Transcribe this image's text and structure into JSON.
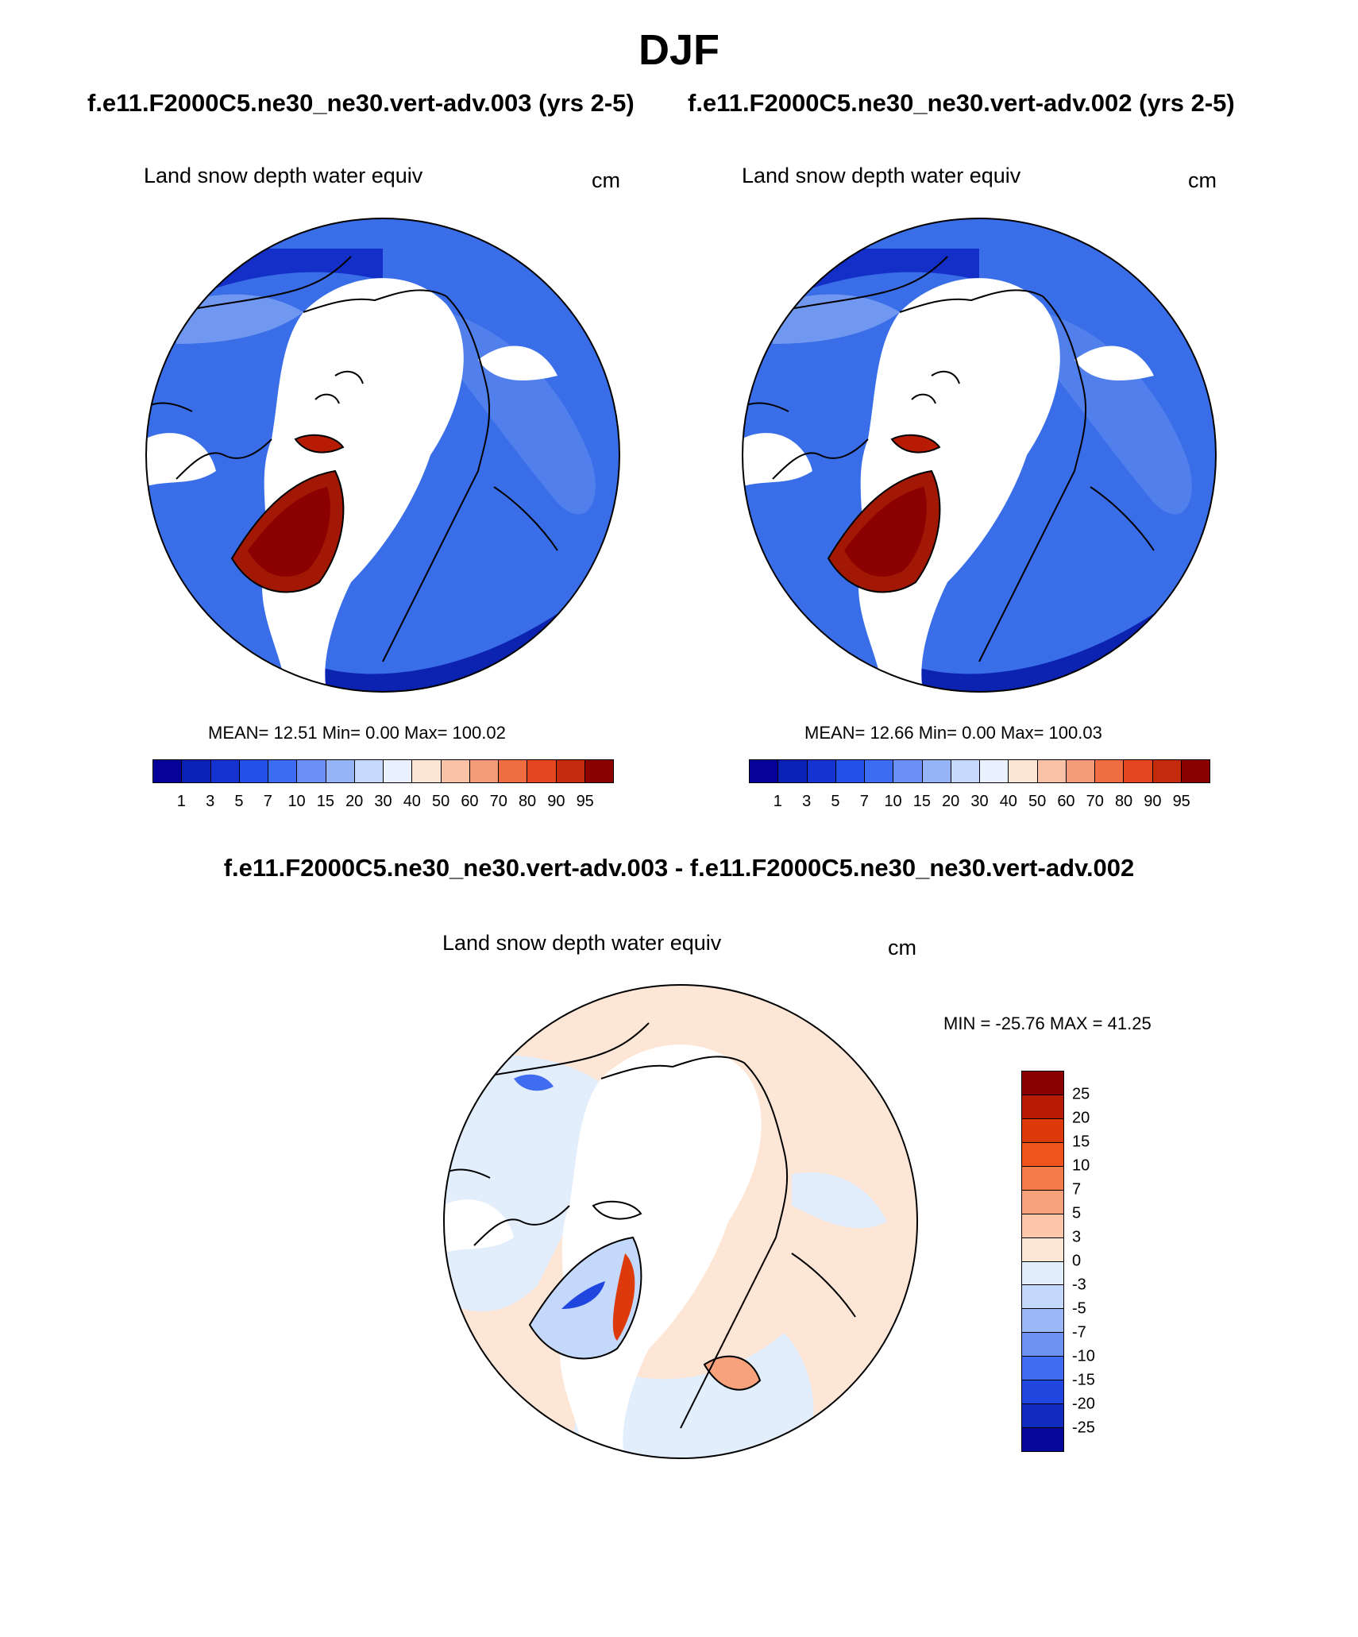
{
  "figure": {
    "season": "DJF",
    "case_a_title": "f.e11.F2000C5.ne30_ne30.vert-adv.003 (yrs 2-5)",
    "case_b_title": "f.e11.F2000C5.ne30_ne30.vert-adv.002 (yrs 2-5)",
    "diff_title": "f.e11.F2000C5.ne30_ne30.vert-adv.003 - f.e11.F2000C5.ne30_ne30.vert-adv.002"
  },
  "panels": [
    {
      "variable": "Land snow depth water equiv",
      "units": "cm",
      "stats": "MEAN=  12.51  Min=   0.00  Max= 100.02",
      "projection": "north-polar-stereographic",
      "field": "model-a"
    },
    {
      "variable": "Land snow depth water equiv",
      "units": "cm",
      "stats": "MEAN=  12.66  Min=   0.00  Max= 100.03",
      "projection": "north-polar-stereographic",
      "field": "model-b"
    },
    {
      "variable": "Land snow depth water equiv",
      "units": "cm",
      "stats": "MIN = -25.76 MAX =  41.25",
      "projection": "north-polar-stereographic",
      "field": "difference"
    }
  ],
  "colorbar_main": {
    "orientation": "horizontal",
    "levels": [
      "1",
      "3",
      "5",
      "7",
      "10",
      "15",
      "20",
      "30",
      "40",
      "50",
      "60",
      "70",
      "80",
      "90",
      "95"
    ],
    "colors": [
      "#08009b",
      "#0a21b5",
      "#1433d0",
      "#2250e8",
      "#3c6cf2",
      "#6a90f5",
      "#94b4f7",
      "#c4d9fb",
      "#e8f1fd",
      "#fde5d6",
      "#f9c2a6",
      "#f59b78",
      "#f06d42",
      "#e6461f",
      "#c42a0c",
      "#8b0000"
    ]
  },
  "colorbar_diff": {
    "orientation": "vertical",
    "levels": [
      "25",
      "20",
      "15",
      "10",
      "7",
      "5",
      "3",
      "0",
      "-3",
      "-5",
      "-7",
      "-10",
      "-15",
      "-20",
      "-25"
    ],
    "colors": [
      "#8b0000",
      "#b81b04",
      "#dd3a0c",
      "#f0531c",
      "#f47c4b",
      "#f8a27c",
      "#fbc6aa",
      "#fde6d6",
      "#e3eefc",
      "#c4d8fb",
      "#9ab8f7",
      "#6c92f4",
      "#3f6cf0",
      "#1f47e0",
      "#102bbd",
      "#07089a"
    ]
  }
}
